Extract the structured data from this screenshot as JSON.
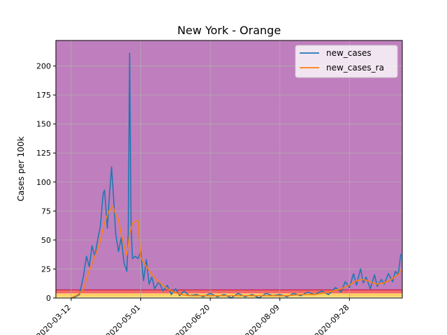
{
  "chart_data": {
    "type": "line",
    "title": "New York - Orange",
    "xlabel": "",
    "ylabel": "Cases per 100k",
    "xlim": [
      "2020-03-01",
      "2020-11-05"
    ],
    "ylim": [
      0,
      222
    ],
    "x_ticks": [
      "2020-03-12",
      "2020-05-01",
      "2020-06-20",
      "2020-08-09",
      "2020-09-28",
      "2020-11-17"
    ],
    "x_tick_labels": [
      "2020-03-12",
      "2020-05-01",
      "2020-06-20",
      "2020-08-09",
      "2020-09-28",
      ""
    ],
    "y_ticks": [
      0,
      25,
      50,
      75,
      100,
      125,
      150,
      175,
      200
    ],
    "y_tick_labels": [
      "0",
      "25",
      "50",
      "75",
      "100",
      "125",
      "150",
      "175",
      "200"
    ],
    "grid": true,
    "legend": {
      "position": "top-right"
    },
    "background_bands": [
      {
        "from": 0,
        "to": 1,
        "color": "#fff59d"
      },
      {
        "from": 1,
        "to": 4,
        "color": "#ffd166"
      },
      {
        "from": 4,
        "to": 7,
        "color": "#f06a6a"
      },
      {
        "from": 7,
        "to": 222,
        "color": "#bf7ebd"
      }
    ],
    "threshold_line": {
      "y": 7,
      "color": "#cc1f4a"
    },
    "series": [
      {
        "name": "new_cases",
        "color": "#1f77b4",
        "points": [
          [
            "2020-03-12",
            0
          ],
          [
            "2020-03-15",
            1
          ],
          [
            "2020-03-18",
            3
          ],
          [
            "2020-03-21",
            20
          ],
          [
            "2020-03-23",
            36
          ],
          [
            "2020-03-25",
            27
          ],
          [
            "2020-03-27",
            45
          ],
          [
            "2020-03-29",
            36
          ],
          [
            "2020-03-31",
            50
          ],
          [
            "2020-04-02",
            62
          ],
          [
            "2020-04-04",
            90
          ],
          [
            "2020-04-05",
            93
          ],
          [
            "2020-04-07",
            60
          ],
          [
            "2020-04-08",
            80
          ],
          [
            "2020-04-10",
            113
          ],
          [
            "2020-04-11",
            95
          ],
          [
            "2020-04-13",
            55
          ],
          [
            "2020-04-15",
            40
          ],
          [
            "2020-04-17",
            52
          ],
          [
            "2020-04-19",
            30
          ],
          [
            "2020-04-21",
            23
          ],
          [
            "2020-04-22",
            55
          ],
          [
            "2020-04-23",
            211
          ],
          [
            "2020-04-24",
            65
          ],
          [
            "2020-04-25",
            34
          ],
          [
            "2020-04-27",
            36
          ],
          [
            "2020-04-29",
            34
          ],
          [
            "2020-05-01",
            40
          ],
          [
            "2020-05-03",
            15
          ],
          [
            "2020-05-05",
            33
          ],
          [
            "2020-05-07",
            12
          ],
          [
            "2020-05-09",
            18
          ],
          [
            "2020-05-11",
            8
          ],
          [
            "2020-05-14",
            14
          ],
          [
            "2020-05-17",
            6
          ],
          [
            "2020-05-20",
            11
          ],
          [
            "2020-05-23",
            3
          ],
          [
            "2020-05-26",
            8
          ],
          [
            "2020-05-29",
            2
          ],
          [
            "2020-06-01",
            6
          ],
          [
            "2020-06-05",
            2
          ],
          [
            "2020-06-10",
            3
          ],
          [
            "2020-06-15",
            1
          ],
          [
            "2020-06-20",
            4
          ],
          [
            "2020-06-25",
            1
          ],
          [
            "2020-06-30",
            3
          ],
          [
            "2020-07-05",
            0
          ],
          [
            "2020-07-10",
            4
          ],
          [
            "2020-07-15",
            1
          ],
          [
            "2020-07-20",
            3
          ],
          [
            "2020-07-25",
            0
          ],
          [
            "2020-07-30",
            4
          ],
          [
            "2020-08-04",
            2
          ],
          [
            "2020-08-09",
            3
          ],
          [
            "2020-08-14",
            1
          ],
          [
            "2020-08-19",
            4
          ],
          [
            "2020-08-24",
            2
          ],
          [
            "2020-08-29",
            5
          ],
          [
            "2020-09-03",
            3
          ],
          [
            "2020-09-08",
            6
          ],
          [
            "2020-09-13",
            3
          ],
          [
            "2020-09-18",
            9
          ],
          [
            "2020-09-22",
            5
          ],
          [
            "2020-09-25",
            14
          ],
          [
            "2020-09-28",
            9
          ],
          [
            "2020-10-01",
            21
          ],
          [
            "2020-10-03",
            11
          ],
          [
            "2020-10-06",
            25
          ],
          [
            "2020-10-08",
            13
          ],
          [
            "2020-10-10",
            18
          ],
          [
            "2020-10-13",
            8
          ],
          [
            "2020-10-16",
            20
          ],
          [
            "2020-10-18",
            10
          ],
          [
            "2020-10-21",
            16
          ],
          [
            "2020-10-23",
            12
          ],
          [
            "2020-10-26",
            21
          ],
          [
            "2020-10-29",
            14
          ],
          [
            "2020-10-31",
            23
          ],
          [
            "2020-11-02",
            20
          ],
          [
            "2020-11-04",
            38
          ]
        ]
      },
      {
        "name": "new_cases_ra",
        "color": "#ff7f0e",
        "points": [
          [
            "2020-03-12",
            0
          ],
          [
            "2020-03-17",
            3
          ],
          [
            "2020-03-21",
            8
          ],
          [
            "2020-03-24",
            20
          ],
          [
            "2020-03-28",
            33
          ],
          [
            "2020-04-01",
            45
          ],
          [
            "2020-04-05",
            65
          ],
          [
            "2020-04-08",
            75
          ],
          [
            "2020-04-11",
            79
          ],
          [
            "2020-04-13",
            72
          ],
          [
            "2020-04-15",
            68
          ],
          [
            "2020-04-17",
            55
          ],
          [
            "2020-04-19",
            45
          ],
          [
            "2020-04-21",
            37
          ],
          [
            "2020-04-23",
            55
          ],
          [
            "2020-04-25",
            64
          ],
          [
            "2020-04-27",
            66
          ],
          [
            "2020-04-29",
            67
          ],
          [
            "2020-05-01",
            35
          ],
          [
            "2020-05-04",
            29
          ],
          [
            "2020-05-08",
            22
          ],
          [
            "2020-05-12",
            16
          ],
          [
            "2020-05-16",
            12
          ],
          [
            "2020-05-20",
            8
          ],
          [
            "2020-05-25",
            5
          ],
          [
            "2020-05-30",
            3
          ],
          [
            "2020-06-05",
            2
          ],
          [
            "2020-06-15",
            2
          ],
          [
            "2020-06-25",
            2
          ],
          [
            "2020-07-05",
            2
          ],
          [
            "2020-07-15",
            2
          ],
          [
            "2020-07-25",
            2
          ],
          [
            "2020-08-04",
            2
          ],
          [
            "2020-08-14",
            2
          ],
          [
            "2020-08-24",
            3
          ],
          [
            "2020-09-03",
            3
          ],
          [
            "2020-09-13",
            5
          ],
          [
            "2020-09-22",
            8
          ],
          [
            "2020-09-28",
            11
          ],
          [
            "2020-10-03",
            15
          ],
          [
            "2020-10-08",
            16
          ],
          [
            "2020-10-13",
            14
          ],
          [
            "2020-10-18",
            12
          ],
          [
            "2020-10-23",
            13
          ],
          [
            "2020-10-28",
            16
          ],
          [
            "2020-11-02",
            20
          ],
          [
            "2020-11-04",
            24
          ]
        ]
      }
    ]
  }
}
